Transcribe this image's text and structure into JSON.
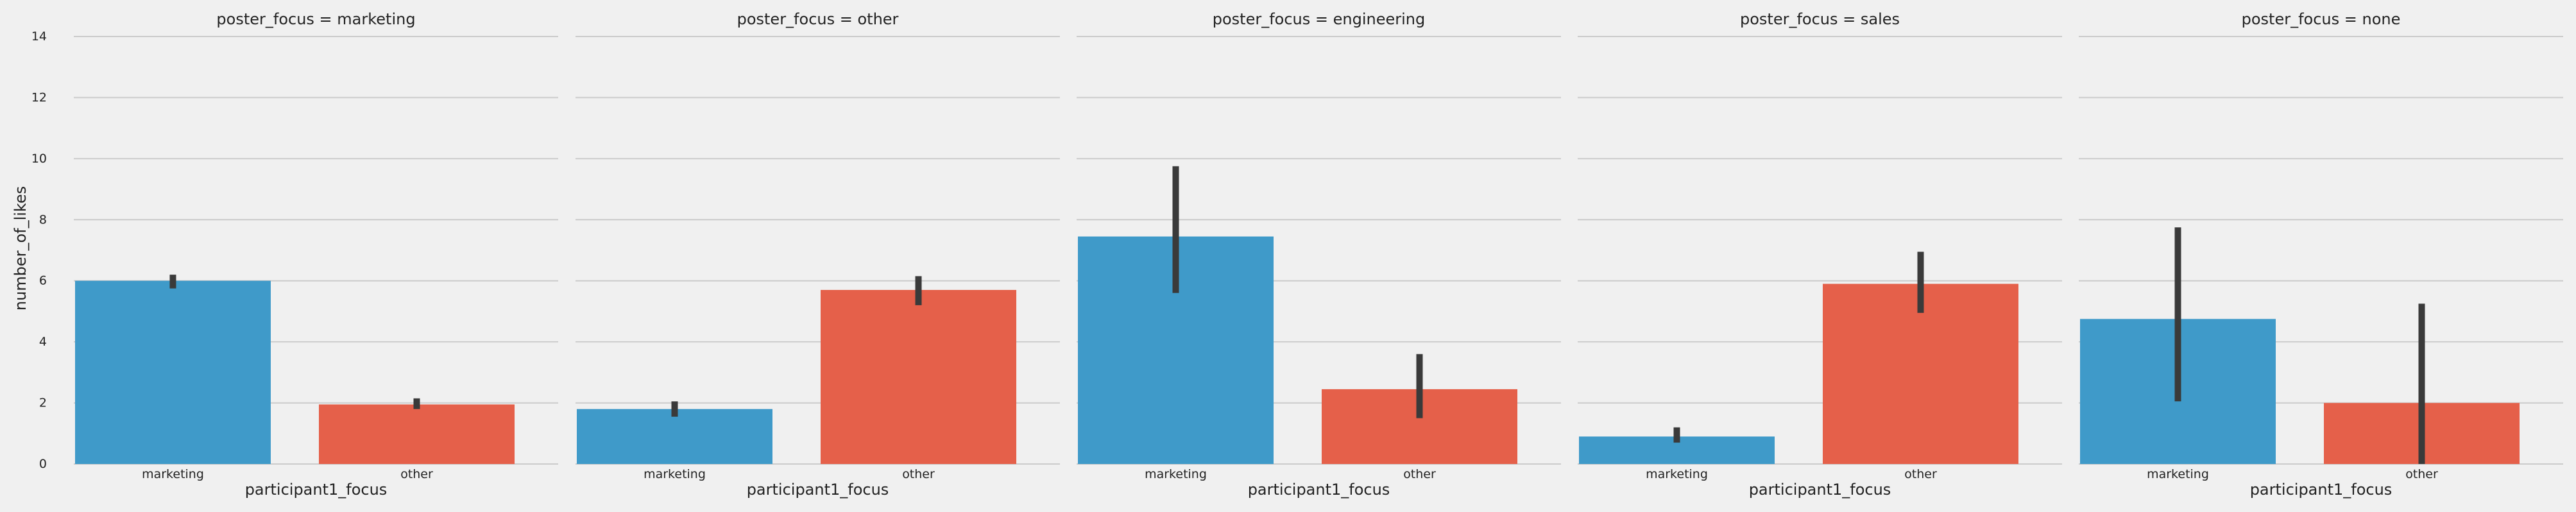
{
  "chart_data": {
    "type": "bar",
    "ylabel": "number_of_likes",
    "xlabel": "participant1_focus",
    "ylim": [
      0,
      14
    ],
    "yticks": [
      0,
      2,
      4,
      6,
      8,
      10,
      12,
      14
    ],
    "grid": true,
    "legend": "none",
    "colors": {
      "marketing": "#3f9ac9",
      "other": "#e5604a",
      "errorbar": "#3a3a3a"
    },
    "categories": [
      "marketing",
      "other"
    ],
    "facets": [
      {
        "title": "poster_focus = marketing",
        "bars": [
          {
            "category": "marketing",
            "value": 6.0,
            "ci": [
              5.75,
              6.2
            ]
          },
          {
            "category": "other",
            "value": 1.95,
            "ci": [
              1.8,
              2.15
            ]
          }
        ]
      },
      {
        "title": "poster_focus = other",
        "bars": [
          {
            "category": "marketing",
            "value": 1.8,
            "ci": [
              1.55,
              2.05
            ]
          },
          {
            "category": "other",
            "value": 5.7,
            "ci": [
              5.2,
              6.15
            ]
          }
        ]
      },
      {
        "title": "poster_focus = engineering",
        "bars": [
          {
            "category": "marketing",
            "value": 7.45,
            "ci": [
              5.6,
              9.75
            ]
          },
          {
            "category": "other",
            "value": 2.45,
            "ci": [
              1.5,
              3.6
            ]
          }
        ]
      },
      {
        "title": "poster_focus = sales",
        "bars": [
          {
            "category": "marketing",
            "value": 0.9,
            "ci": [
              0.7,
              1.2
            ]
          },
          {
            "category": "other",
            "value": 5.9,
            "ci": [
              4.95,
              6.95
            ]
          }
        ]
      },
      {
        "title": "poster_focus = none",
        "bars": [
          {
            "category": "marketing",
            "value": 4.75,
            "ci": [
              2.05,
              7.75
            ]
          },
          {
            "category": "other",
            "value": 2.0,
            "ci": [
              0,
              5.25
            ]
          }
        ]
      }
    ]
  }
}
